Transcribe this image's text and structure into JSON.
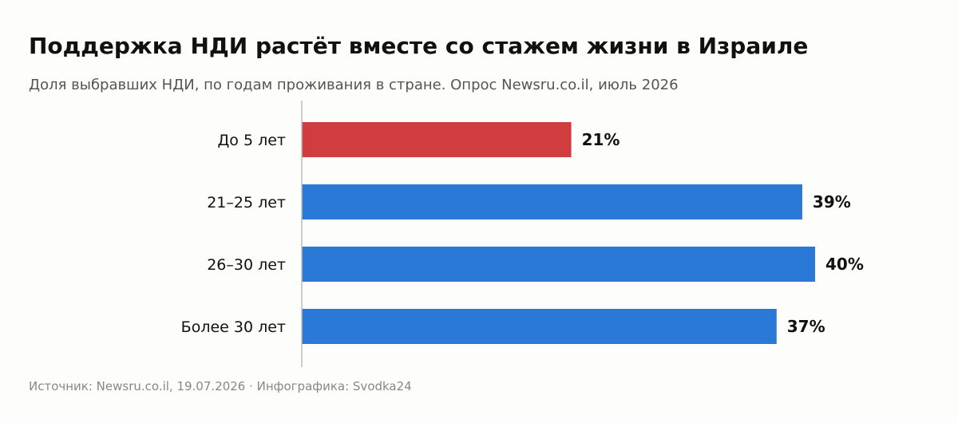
{
  "header": {
    "title": "Поддержка НДИ растёт вместе со стажем жизни в Израиле",
    "subtitle": "Доля выбравших НДИ, по годам проживания в стране. Опрос Newsru.co.il, июль 2026"
  },
  "footer": {
    "source": "Источник: Newsru.co.il, 19.07.2026 · Инфографика: Svodka24"
  },
  "chart_data": {
    "type": "bar",
    "orientation": "horizontal",
    "categories": [
      "До 5 лет",
      "21–25 лет",
      "26–30 лет",
      "Более 30 лет"
    ],
    "values": [
      21,
      39,
      40,
      37
    ],
    "data_labels": [
      "21%",
      "39%",
      "40%",
      "37%"
    ],
    "unit": "%",
    "title": "Поддержка НДИ растёт вместе со стажем жизни в Израиле",
    "subtitle": "Доля выбравших НДИ, по годам проживания в стране. Опрос Newsru.co.il, июль 2026",
    "xlabel": "",
    "ylabel": "",
    "xlim": [
      0,
      40
    ],
    "grid": false,
    "legend": "none",
    "highlight_index": 0,
    "colors": {
      "highlight": "#d13c3e",
      "default": "#2a79d6",
      "axis": "#bbbbbb",
      "label": "#111111"
    }
  }
}
